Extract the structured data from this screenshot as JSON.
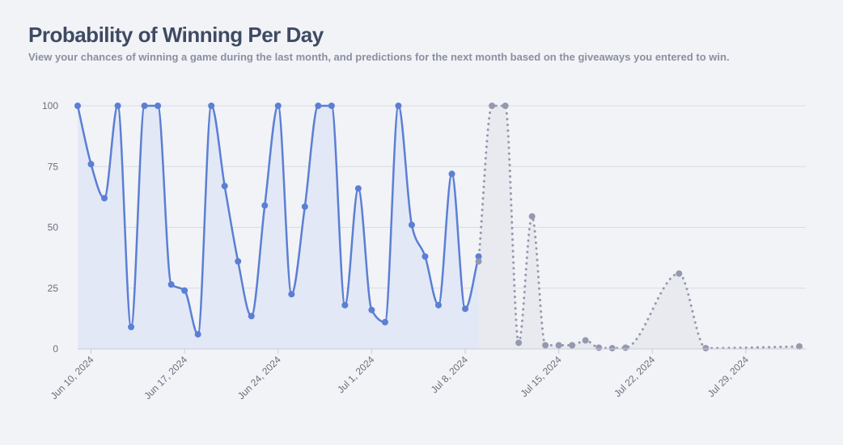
{
  "chart_data": {
    "type": "line",
    "title": "Probability of Winning Per Day",
    "subtitle": "View your chances of winning a game during the last month, and predictions for the next month based on the giveaways you entered to win.",
    "series": [
      {
        "color": "#5b7fd4",
        "fill": "#e2e8f5",
        "dotted": false,
        "x": [
          "2024-06-09",
          "2024-06-10",
          "2024-06-11",
          "2024-06-12",
          "2024-06-13",
          "2024-06-14",
          "2024-06-15",
          "2024-06-16",
          "2024-06-17",
          "2024-06-18",
          "2024-06-19",
          "2024-06-20",
          "2024-06-21",
          "2024-06-22",
          "2024-06-23",
          "2024-06-24",
          "2024-06-25",
          "2024-06-26",
          "2024-06-27",
          "2024-06-28",
          "2024-06-29",
          "2024-06-30",
          "2024-07-01",
          "2024-07-02",
          "2024-07-03",
          "2024-07-04",
          "2024-07-05",
          "2024-07-06",
          "2024-07-07",
          "2024-07-08",
          "2024-07-09"
        ],
        "values": [
          100,
          76,
          62,
          100,
          9,
          100,
          100,
          26.5,
          24,
          6,
          100,
          67,
          36,
          13.5,
          59,
          100,
          22.5,
          58.5,
          100,
          100,
          18,
          66,
          16,
          11,
          100,
          51,
          38,
          18,
          72,
          16.5,
          38
        ]
      },
      {
        "color": "#9499b0",
        "fill": "#e9eaef",
        "dotted": true,
        "x": [
          "2024-07-09",
          "2024-07-10",
          "2024-07-11",
          "2024-07-12",
          "2024-07-13",
          "2024-07-14",
          "2024-07-15",
          "2024-07-16",
          "2024-07-17",
          "2024-07-18",
          "2024-07-19",
          "2024-07-20",
          "2024-07-24",
          "2024-07-26",
          "2024-08-02"
        ],
        "values": [
          36,
          100,
          100,
          2.5,
          54.5,
          1.5,
          1.5,
          1.5,
          3.5,
          0.5,
          0.3,
          0.5,
          31,
          0.3,
          1
        ]
      }
    ],
    "xlim": [
      "2024-06-09",
      "2024-08-02"
    ],
    "xticks": [
      {
        "value": "2024-06-10",
        "label": "Jun 10, 2024"
      },
      {
        "value": "2024-06-17",
        "label": "Jun 17, 2024"
      },
      {
        "value": "2024-06-24",
        "label": "Jun 24, 2024"
      },
      {
        "value": "2024-07-01",
        "label": "Jul 1, 2024"
      },
      {
        "value": "2024-07-08",
        "label": "Jul 8, 2024"
      },
      {
        "value": "2024-07-15",
        "label": "Jul 15, 2024"
      },
      {
        "value": "2024-07-22",
        "label": "Jul 22, 2024"
      },
      {
        "value": "2024-07-29",
        "label": "Jul 29, 2024"
      }
    ],
    "ylim": [
      0,
      100
    ],
    "yticks": [
      0,
      25,
      50,
      75,
      100
    ],
    "grid": true
  }
}
